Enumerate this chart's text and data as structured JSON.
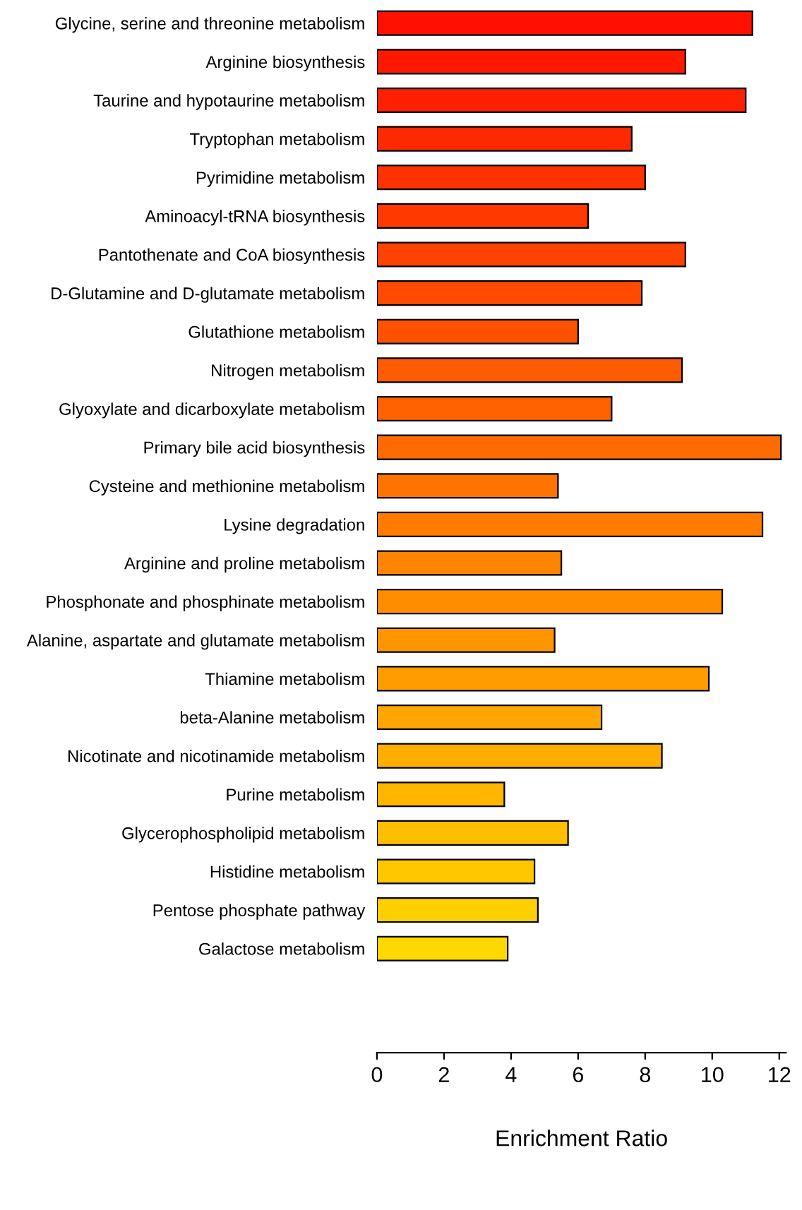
{
  "chart_data": {
    "type": "bar",
    "orientation": "horizontal",
    "xlabel": "Enrichment Ratio",
    "categories": [
      "Glycine, serine and threonine metabolism",
      "Arginine biosynthesis",
      "Taurine and hypotaurine metabolism",
      "Tryptophan metabolism",
      "Pyrimidine metabolism",
      "Aminoacyl-tRNA biosynthesis",
      "Pantothenate and CoA biosynthesis",
      "D-Glutamine and D-glutamate metabolism",
      "Glutathione metabolism",
      "Nitrogen metabolism",
      "Glyoxylate and dicarboxylate metabolism",
      "Primary bile acid biosynthesis",
      "Cysteine and methionine metabolism",
      "Lysine degradation",
      "Arginine and proline metabolism",
      "Phosphonate and phosphinate metabolism",
      "Alanine, aspartate and glutamate metabolism",
      "Thiamine metabolism",
      "beta-Alanine metabolism",
      "Nicotinate and nicotinamide metabolism",
      "Purine metabolism",
      "Glycerophospholipid metabolism",
      "Histidine metabolism",
      "Pentose phosphate pathway",
      "Galactose metabolism"
    ],
    "values": [
      11.2,
      9.2,
      11.0,
      7.6,
      8.0,
      6.3,
      9.2,
      7.9,
      6.0,
      9.1,
      7.0,
      12.05,
      5.4,
      11.5,
      5.5,
      10.3,
      5.3,
      9.9,
      6.7,
      8.5,
      3.8,
      5.7,
      4.7,
      4.8,
      3.9
    ],
    "colors": [
      "#ff1000",
      "#ff1800",
      "#ff2000",
      "#ff2900",
      "#ff3100",
      "#ff3900",
      "#ff4200",
      "#ff4a00",
      "#ff5200",
      "#ff5b00",
      "#ff6300",
      "#ff6b00",
      "#ff7400",
      "#ff7c00",
      "#ff8400",
      "#ff8d00",
      "#ff9500",
      "#ff9d00",
      "#ffa600",
      "#ffae00",
      "#ffb600",
      "#ffbf00",
      "#ffc700",
      "#ffcf00",
      "#ffd800"
    ],
    "xlim": [
      0,
      12.2
    ],
    "xticks": [
      0,
      2,
      4,
      6,
      8,
      10,
      12
    ],
    "grid": false
  }
}
